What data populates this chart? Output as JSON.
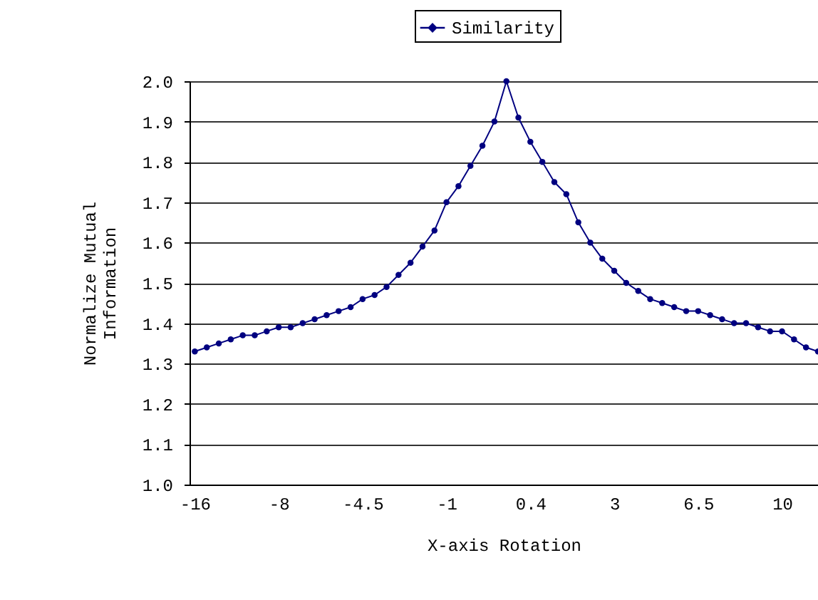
{
  "chart_data": {
    "type": "line",
    "xlabel": "X-axis Rotation",
    "ylabel": "Normalize Mutual Information",
    "categories": [
      "-16",
      null,
      null,
      null,
      null,
      null,
      null,
      "-8",
      null,
      null,
      null,
      null,
      null,
      null,
      "-4.5",
      null,
      null,
      null,
      null,
      null,
      null,
      "-1",
      null,
      null,
      null,
      null,
      null,
      null,
      "0.4",
      null,
      null,
      null,
      null,
      null,
      null,
      "3",
      null,
      null,
      null,
      null,
      null,
      null,
      "6.5",
      null,
      null,
      null,
      null,
      null,
      null,
      "10",
      null,
      null,
      null
    ],
    "series": [
      {
        "name": "Similarity",
        "color": "#000080",
        "values": [
          1.33,
          1.34,
          1.35,
          1.36,
          1.37,
          1.37,
          1.38,
          1.39,
          1.39,
          1.4,
          1.41,
          1.42,
          1.43,
          1.44,
          1.46,
          1.47,
          1.49,
          1.52,
          1.55,
          1.59,
          1.63,
          1.7,
          1.74,
          1.79,
          1.84,
          1.9,
          2.0,
          1.91,
          1.85,
          1.8,
          1.75,
          1.72,
          1.65,
          1.6,
          1.56,
          1.53,
          1.5,
          1.48,
          1.46,
          1.45,
          1.44,
          1.43,
          1.43,
          1.42,
          1.41,
          1.4,
          1.4,
          1.39,
          1.38,
          1.38,
          1.36,
          1.34,
          1.33
        ]
      }
    ],
    "ylim": [
      1.0,
      2.0
    ],
    "yticks": [
      {
        "value": 1,
        "label": "1.0"
      },
      1.1,
      1.2,
      1.3,
      1.4,
      1.5,
      1.6,
      1.7,
      1.8,
      1.9,
      {
        "value": 2,
        "label": "2.0"
      }
    ],
    "grid": "y",
    "legend": "top",
    "marker": "circle",
    "line_style": "solid"
  }
}
